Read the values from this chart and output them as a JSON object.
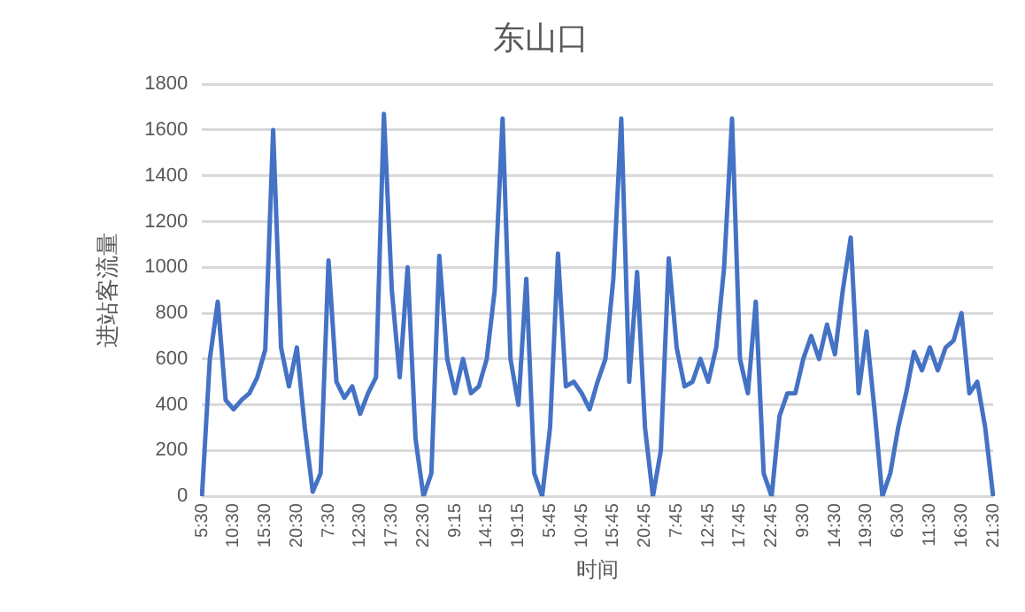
{
  "chart_data": {
    "type": "line",
    "title": "东山口",
    "xlabel": "时间",
    "ylabel": "进站客流量",
    "categories": [
      "5:30",
      null,
      null,
      null,
      "10:30",
      null,
      null,
      null,
      "15:30",
      null,
      null,
      null,
      "20:30",
      null,
      null,
      null,
      "7:30",
      null,
      null,
      null,
      "12:30",
      null,
      null,
      null,
      "17:30",
      null,
      null,
      null,
      "22:30",
      null,
      null,
      null,
      "9:15",
      null,
      null,
      null,
      "14:15",
      null,
      null,
      null,
      "19:15",
      null,
      null,
      null,
      "5:45",
      null,
      null,
      null,
      "10:45",
      null,
      null,
      null,
      "15:45",
      null,
      null,
      null,
      "20:45",
      null,
      null,
      null,
      "7:45",
      null,
      null,
      null,
      "12:45",
      null,
      null,
      null,
      "17:45",
      null,
      null,
      null,
      "22:45",
      null,
      null,
      null,
      "9:30",
      null,
      null,
      null,
      "14:30",
      null,
      null,
      null,
      "19:30",
      null,
      null,
      null,
      "6:30",
      null,
      null,
      null,
      "11:30",
      null,
      null,
      null,
      "16:30",
      null,
      null,
      null,
      "21:30"
    ],
    "series": [
      {
        "color": "#4472c4",
        "values": [
          0,
          600,
          850,
          420,
          380,
          420,
          450,
          520,
          640,
          1600,
          650,
          480,
          650,
          300,
          20,
          100,
          1030,
          500,
          430,
          480,
          360,
          450,
          520,
          1670,
          900,
          520,
          1000,
          250,
          0,
          100,
          1050,
          600,
          450,
          600,
          450,
          480,
          600,
          900,
          1650,
          600,
          400,
          950,
          100,
          0,
          300,
          1060,
          480,
          500,
          450,
          380,
          500,
          600,
          950,
          1650,
          500,
          980,
          300,
          0,
          200,
          1040,
          650,
          480,
          500,
          600,
          500,
          650,
          1000,
          1650,
          600,
          450,
          850,
          100,
          0,
          350,
          450,
          450,
          600,
          700,
          600,
          750,
          620,
          900,
          1130,
          450,
          720,
          380,
          0,
          100,
          300,
          450,
          630,
          550,
          650,
          550,
          650,
          680,
          800,
          450,
          500,
          300,
          0
        ]
      }
    ],
    "ylim": [
      0,
      1800
    ],
    "yticks": [
      0,
      200,
      400,
      600,
      800,
      1000,
      1200,
      1400,
      1600,
      1800
    ],
    "grid": "y",
    "legend": false,
    "marker": "none",
    "line_style": "solid"
  }
}
